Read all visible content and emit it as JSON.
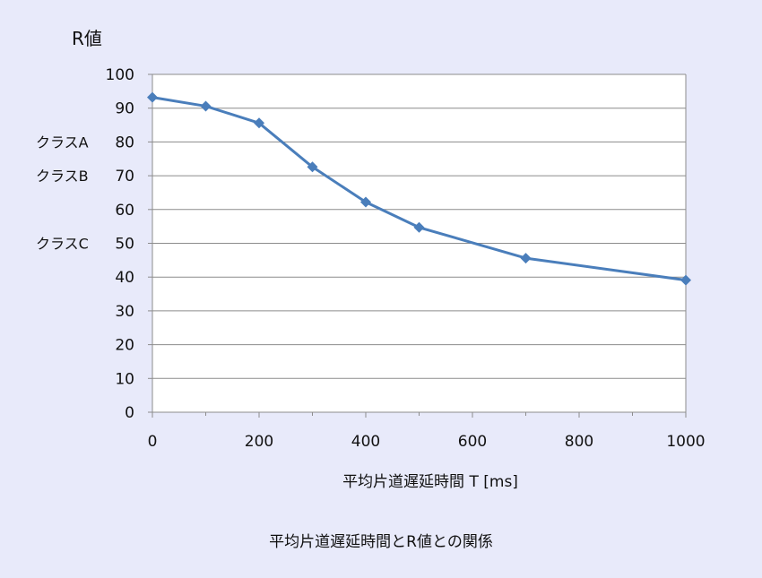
{
  "chart_data": {
    "type": "line",
    "title": "",
    "ylabel": "R値",
    "xlabel": "平均片道遅延時間 T [ms]",
    "xlim": [
      0,
      1000
    ],
    "ylim": [
      0,
      100
    ],
    "xticks": [
      0,
      200,
      400,
      600,
      800,
      1000
    ],
    "yticks": [
      0,
      10,
      20,
      30,
      40,
      50,
      60,
      70,
      80,
      90,
      100
    ],
    "grid": true,
    "series": [
      {
        "color": "#4a7ebb",
        "marker": "diamond",
        "x": [
          0,
          100,
          200,
          300,
          400,
          500,
          700,
          1000
        ],
        "y": [
          93.2,
          90.6,
          85.6,
          72.6,
          62.2,
          54.7,
          45.6,
          39.1
        ]
      }
    ],
    "class_labels": [
      {
        "label": "クラスA",
        "y": 80
      },
      {
        "label": "クラスB",
        "y": 70
      },
      {
        "label": "クラスC",
        "y": 50
      }
    ]
  },
  "caption": "平均片道遅延時間とR値との関係"
}
